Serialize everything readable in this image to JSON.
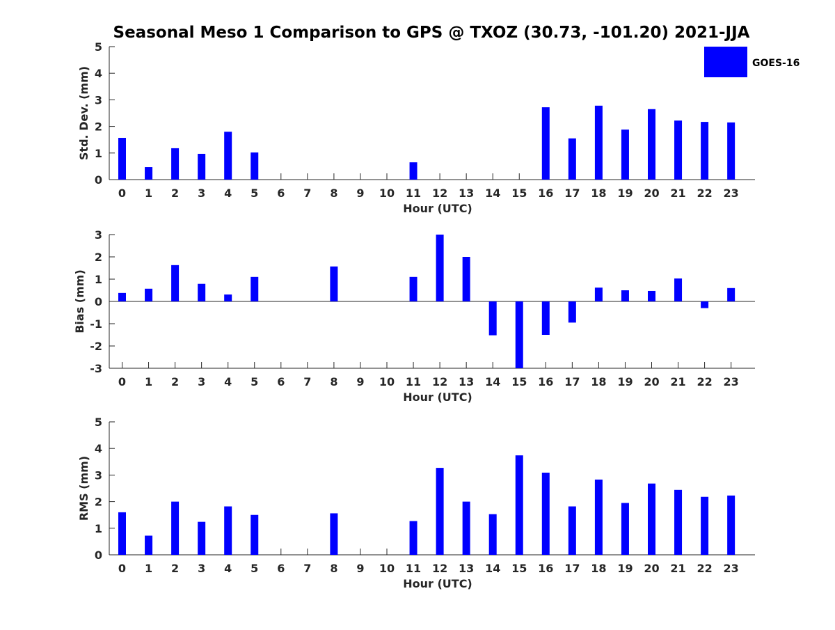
{
  "title": "Seasonal Meso 1 Comparison to GPS @ TXOZ (30.73, -101.20) 2021-JJA",
  "legend": {
    "label": "GOES-16",
    "color": "#0000ff"
  },
  "colors": {
    "bar": "#0000ff",
    "axis": "#262626"
  },
  "chart_data": [
    {
      "type": "bar",
      "categories": [
        "0",
        "1",
        "2",
        "3",
        "4",
        "5",
        "6",
        "7",
        "8",
        "9",
        "10",
        "11",
        "12",
        "13",
        "14",
        "15",
        "16",
        "17",
        "18",
        "19",
        "20",
        "21",
        "22",
        "23"
      ],
      "series": [
        {
          "name": "GOES-16",
          "values": [
            1.57,
            0.47,
            1.18,
            0.97,
            1.8,
            1.02,
            null,
            null,
            null,
            null,
            null,
            0.65,
            null,
            null,
            null,
            null,
            2.72,
            1.55,
            2.78,
            1.88,
            2.65,
            2.22,
            2.17,
            2.15
          ]
        }
      ],
      "xlabel": "Hour (UTC)",
      "ylabel": "Std. Dev. (mm)",
      "ylim": [
        0,
        5
      ],
      "yticks": [
        "0",
        "1",
        "2",
        "3",
        "4",
        "5"
      ],
      "grid": false,
      "legend_position": "top-right"
    },
    {
      "type": "bar",
      "categories": [
        "0",
        "1",
        "2",
        "3",
        "4",
        "5",
        "6",
        "7",
        "8",
        "9",
        "10",
        "11",
        "12",
        "13",
        "14",
        "15",
        "16",
        "17",
        "18",
        "19",
        "20",
        "21",
        "22",
        "23"
      ],
      "series": [
        {
          "name": "GOES-16",
          "values": [
            0.38,
            0.57,
            1.63,
            0.79,
            0.31,
            1.1,
            null,
            null,
            1.57,
            null,
            null,
            1.1,
            3.0,
            2.0,
            -1.52,
            -3.0,
            -1.5,
            -0.95,
            0.62,
            0.5,
            0.47,
            1.03,
            -0.3,
            0.6
          ]
        }
      ],
      "xlabel": "Hour (UTC)",
      "ylabel": "Bias (mm)",
      "ylim": [
        -3,
        3
      ],
      "yticks": [
        "-3",
        "-2",
        "-1",
        "0",
        "1",
        "2",
        "3"
      ],
      "grid": false,
      "zero_line": true
    },
    {
      "type": "bar",
      "categories": [
        "0",
        "1",
        "2",
        "3",
        "4",
        "5",
        "6",
        "7",
        "8",
        "9",
        "10",
        "11",
        "12",
        "13",
        "14",
        "15",
        "16",
        "17",
        "18",
        "19",
        "20",
        "21",
        "22",
        "23"
      ],
      "series": [
        {
          "name": "GOES-16",
          "values": [
            1.6,
            0.72,
            2.0,
            1.24,
            1.82,
            1.5,
            null,
            null,
            1.56,
            null,
            null,
            1.27,
            3.27,
            2.0,
            1.53,
            3.74,
            3.09,
            1.82,
            2.83,
            1.95,
            2.68,
            2.44,
            2.18,
            2.23
          ]
        }
      ],
      "xlabel": "Hour (UTC)",
      "ylabel": "RMS (mm)",
      "ylim": [
        0,
        5
      ],
      "yticks": [
        "0",
        "1",
        "2",
        "3",
        "4",
        "5"
      ],
      "grid": false
    }
  ]
}
